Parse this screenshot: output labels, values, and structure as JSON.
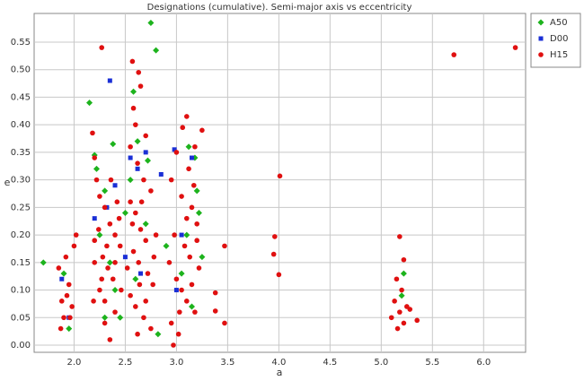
{
  "chart_data": {
    "type": "scatter",
    "title": "Designations (cumulative). Semi-major axis vs eccentricity",
    "x_label": "a",
    "y_label": "e",
    "xlim": [
      1.61,
      6.41
    ],
    "ylim": [
      -0.013,
      0.602
    ],
    "xticks": [
      {
        "value": 2,
        "label": "2.0"
      },
      2.5,
      {
        "value": 3,
        "label": "3.0"
      },
      3.5,
      {
        "value": 4,
        "label": "4.0"
      },
      4.5,
      {
        "value": 5,
        "label": "5.0"
      },
      5.5,
      {
        "value": 6,
        "label": "6.0"
      }
    ],
    "yticks": [
      {
        "value": 0,
        "label": "0.00"
      },
      {
        "value": 0.05,
        "label": "0.05"
      },
      {
        "value": 0.1,
        "label": "0.10"
      },
      {
        "value": 0.15,
        "label": "0.15"
      },
      {
        "value": 0.2,
        "label": "0.20"
      },
      {
        "value": 0.25,
        "label": "0.25"
      },
      {
        "value": 0.3,
        "label": "0.30"
      },
      {
        "value": 0.35,
        "label": "0.35"
      },
      {
        "value": 0.4,
        "label": "0.40"
      },
      {
        "value": 0.45,
        "label": "0.45"
      },
      {
        "value": 0.5,
        "label": "0.50"
      },
      {
        "value": 0.55,
        "label": "0.55"
      }
    ],
    "grid": true,
    "legend": "outside-right",
    "series": [
      {
        "name": "A50",
        "color": "#1db31d",
        "marker": "diamond",
        "x": [
          1.7,
          1.9,
          1.95,
          2.15,
          2.2,
          2.22,
          2.3,
          2.38,
          2.25,
          2.4,
          2.3,
          2.35,
          2.5,
          2.58,
          2.62,
          2.75,
          2.8,
          2.72,
          2.7,
          2.6,
          2.82,
          2.9,
          3.12,
          3.18,
          3.2,
          3.22,
          3.1,
          3.05,
          3.15,
          3.25,
          5.22,
          5.2,
          2.45,
          2.55
        ],
        "values": [
          0.15,
          0.13,
          0.03,
          0.44,
          0.345,
          0.32,
          0.28,
          0.365,
          0.2,
          0.1,
          0.05,
          0.15,
          0.24,
          0.46,
          0.37,
          0.585,
          0.535,
          0.335,
          0.22,
          0.12,
          0.02,
          0.18,
          0.36,
          0.34,
          0.28,
          0.24,
          0.2,
          0.13,
          0.07,
          0.16,
          0.13,
          0.09,
          0.05,
          0.3
        ]
      },
      {
        "name": "D00",
        "color": "#1a2fd6",
        "marker": "square",
        "x": [
          1.88,
          1.95,
          2.35,
          2.2,
          2.32,
          2.4,
          2.55,
          2.62,
          2.7,
          2.85,
          2.65,
          2.98,
          3.05,
          3.15,
          3.0,
          2.5
        ],
        "values": [
          0.12,
          0.05,
          0.48,
          0.23,
          0.25,
          0.29,
          0.34,
          0.32,
          0.35,
          0.31,
          0.13,
          0.355,
          0.2,
          0.34,
          0.1,
          0.16
        ]
      },
      {
        "name": "H15",
        "color": "#e01010",
        "marker": "circle",
        "x": [
          6.31,
          5.71,
          4.01,
          3.96,
          3.95,
          4.0,
          3.47,
          3.47,
          3.38,
          3.38,
          5.18,
          5.22,
          5.15,
          5.2,
          5.13,
          5.18,
          5.1,
          5.25,
          5.35,
          5.22,
          5.28,
          5.16,
          1.85,
          1.88,
          1.9,
          1.95,
          1.98,
          2.0,
          1.92,
          1.87,
          1.96,
          2.02,
          1.93,
          2.27,
          2.18,
          2.2,
          2.22,
          2.25,
          2.3,
          2.35,
          2.4,
          2.45,
          2.28,
          2.33,
          2.38,
          2.25,
          2.3,
          2.4,
          2.2,
          2.42,
          2.36,
          2.2,
          2.24,
          2.46,
          2.3,
          2.35,
          2.44,
          2.27,
          2.4,
          2.19,
          2.32,
          2.57,
          2.63,
          2.65,
          2.58,
          2.6,
          2.7,
          2.55,
          2.62,
          2.68,
          2.75,
          2.55,
          2.6,
          2.65,
          2.7,
          2.58,
          2.63,
          2.72,
          2.77,
          2.55,
          2.6,
          2.68,
          2.75,
          2.62,
          2.8,
          2.52,
          2.66,
          2.78,
          2.7,
          2.57,
          2.64,
          3.1,
          3.06,
          3.18,
          3.0,
          3.25,
          3.12,
          2.95,
          3.05,
          3.15,
          3.2,
          2.98,
          3.08,
          3.13,
          3.22,
          3.0,
          3.05,
          3.1,
          3.18,
          2.95,
          3.02,
          2.97,
          3.15,
          3.2,
          2.93,
          3.1,
          3.03,
          3.17
        ],
        "values": [
          0.54,
          0.527,
          0.307,
          0.197,
          0.165,
          0.128,
          0.18,
          0.04,
          0.095,
          0.062,
          0.197,
          0.155,
          0.12,
          0.1,
          0.08,
          0.06,
          0.05,
          0.07,
          0.045,
          0.04,
          0.065,
          0.03,
          0.14,
          0.08,
          0.05,
          0.11,
          0.07,
          0.18,
          0.16,
          0.03,
          0.05,
          0.2,
          0.09,
          0.54,
          0.385,
          0.34,
          0.3,
          0.27,
          0.25,
          0.22,
          0.2,
          0.18,
          0.16,
          0.14,
          0.12,
          0.1,
          0.08,
          0.06,
          0.19,
          0.26,
          0.3,
          0.15,
          0.21,
          0.1,
          0.04,
          0.01,
          0.23,
          0.12,
          0.15,
          0.08,
          0.18,
          0.515,
          0.495,
          0.47,
          0.43,
          0.4,
          0.38,
          0.36,
          0.33,
          0.3,
          0.28,
          0.26,
          0.24,
          0.21,
          0.19,
          0.17,
          0.15,
          0.13,
          0.11,
          0.09,
          0.07,
          0.05,
          0.03,
          0.02,
          0.2,
          0.14,
          0.26,
          0.16,
          0.08,
          0.22,
          0.11,
          0.415,
          0.395,
          0.36,
          0.35,
          0.39,
          0.32,
          0.3,
          0.27,
          0.25,
          0.22,
          0.2,
          0.18,
          0.16,
          0.14,
          0.12,
          0.1,
          0.08,
          0.06,
          0.04,
          0.02,
          0.0,
          0.11,
          0.19,
          0.15,
          0.23,
          0.06,
          0.29
        ]
      }
    ]
  }
}
